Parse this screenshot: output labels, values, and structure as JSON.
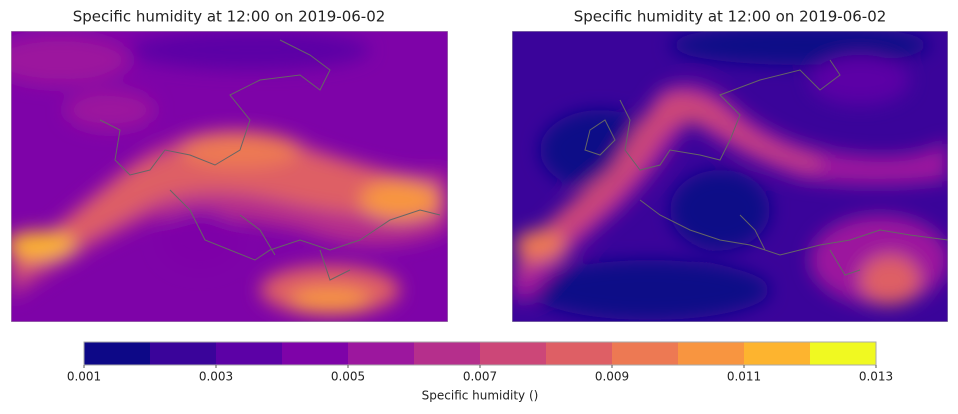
{
  "panels": [
    {
      "title": "Specific humidity at 12:00 on 2019-06-02"
    },
    {
      "title": "Specific humidity at 12:00 on 2019-06-02"
    }
  ],
  "colorbar": {
    "label": "Specific humidity ()",
    "levels": [
      0.001,
      0.002,
      0.003,
      0.004,
      0.005,
      0.006,
      0.007,
      0.008,
      0.009,
      0.01,
      0.011,
      0.012,
      0.013
    ],
    "colors": [
      "#0d0887",
      "#3a049a",
      "#5c01a6",
      "#7e03a8",
      "#9c179e",
      "#b52f8c",
      "#cc4778",
      "#de5f65",
      "#ed7953",
      "#f89540",
      "#fdb42f",
      "#f0f921"
    ],
    "lim": [
      0.001,
      0.013
    ],
    "ticks": [
      0.001,
      0.003,
      0.005,
      0.007,
      0.009,
      0.011,
      0.013
    ]
  }
}
